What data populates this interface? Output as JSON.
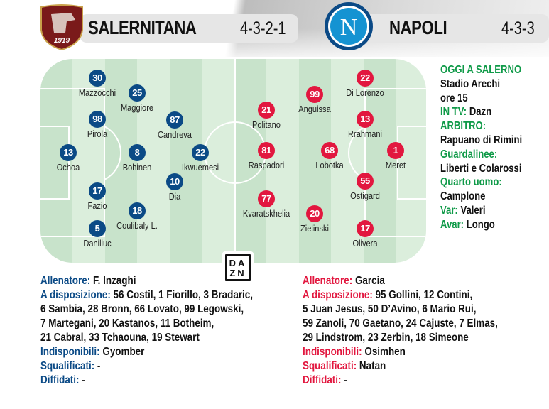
{
  "header": {
    "home": {
      "name": "SALERNITANA",
      "formation": "4-3-2-1",
      "logo_text": "1919",
      "color": "#7a1a1a"
    },
    "away": {
      "name": "NAPOLI",
      "formation": "4-3-3",
      "logo_text": "N",
      "color": "#1593d2"
    }
  },
  "colors": {
    "home": "#0b4a86",
    "away": "#e2173f",
    "info": "#0f9a48",
    "pitch_light": "#dbeedc",
    "pitch_dark": "#c8e3cb"
  },
  "home_players": [
    {
      "number": "30",
      "name": "Mazzocchi"
    },
    {
      "number": "25",
      "name": "Maggiore"
    },
    {
      "number": "98",
      "name": "Pirola"
    },
    {
      "number": "87",
      "name": "Candreva"
    },
    {
      "number": "13",
      "name": "Ochoa"
    },
    {
      "number": "8",
      "name": "Bohinen"
    },
    {
      "number": "22",
      "name": "Ikwuemesi"
    },
    {
      "number": "10",
      "name": "Dia"
    },
    {
      "number": "17",
      "name": "Fazio"
    },
    {
      "number": "18",
      "name": "Coulibaly L."
    },
    {
      "number": "5",
      "name": "Daniliuc"
    }
  ],
  "away_players": [
    {
      "number": "22",
      "name": "Di Lorenzo"
    },
    {
      "number": "99",
      "name": "Anguissa"
    },
    {
      "number": "21",
      "name": "Politano"
    },
    {
      "number": "13",
      "name": "Rrahmani"
    },
    {
      "number": "81",
      "name": "Raspadori"
    },
    {
      "number": "68",
      "name": "Lobotka"
    },
    {
      "number": "1",
      "name": "Meret"
    },
    {
      "number": "55",
      "name": "Ostigard"
    },
    {
      "number": "77",
      "name": "Kvaratskhelia"
    },
    {
      "number": "20",
      "name": "Zielinski"
    },
    {
      "number": "17",
      "name": "Olivera"
    }
  ],
  "info": {
    "title": "OGGI A SALERNO",
    "stadium": "Stadio Arechi",
    "time": "ore 15",
    "tv_label": "IN TV:",
    "tv": "Dazn",
    "referee_label": "ARBITRO:",
    "referee": "Rapuano di Rimini",
    "linesmen_label": "Guardalinee:",
    "linesmen": "Liberti e Colarossi",
    "fourth_label": "Quarto uomo:",
    "fourth": "Camplone",
    "var_label": "Var:",
    "var": "Valeri",
    "avar_label": "Avar:",
    "avar": "Longo"
  },
  "broadcaster_logo": {
    "top": "DA",
    "bottom": "ZN"
  },
  "home_details": {
    "coach_label": "Allenatore:",
    "coach": "F. Inzaghi",
    "bench_label": "A disposizione:",
    "bench_lines": [
      "56 Costil, 1 Fiorillo, 3 Bradaric,",
      "6 Sambia, 28 Bronn, 66 Lovato, 99 Legowski,",
      "7 Martegani, 20 Kastanos, 11 Botheim,",
      "21 Cabral, 33 Tchaouna, 19 Stewart"
    ],
    "unavailable_label": "Indisponibili:",
    "unavailable": "Gyomber",
    "suspended_label": "Squalificati:",
    "suspended": "-",
    "warned_label": "Diffidati:",
    "warned": "-"
  },
  "away_details": {
    "coach_label": "Allenatore:",
    "coach": "Garcia",
    "bench_label": "A disposizione:",
    "bench_lines": [
      "95 Gollini, 12 Contini,",
      "5 Juan Jesus, 50 D’Avino, 6 Mario Rui,",
      "59 Zanoli, 70 Gaetano, 24 Cajuste, 7 Elmas,",
      "29 Lindstrom, 23 Zerbin, 18 Simeone"
    ],
    "unavailable_label": "Indisponibili:",
    "unavailable": "Osimhen",
    "suspended_label": "Squalificati:",
    "suspended": "Natan",
    "warned_label": "Diffidati:",
    "warned": "-"
  }
}
